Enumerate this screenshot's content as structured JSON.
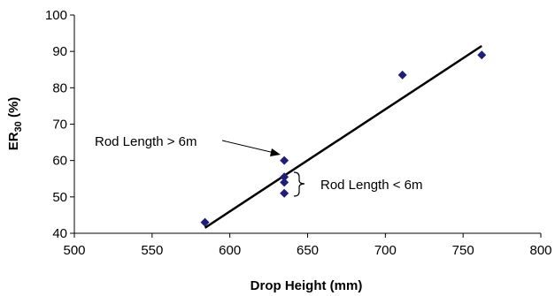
{
  "chart_data": {
    "type": "scatter",
    "xlabel": "Drop Height (mm)",
    "ylabel": {
      "main": "ER",
      "subscript": "30",
      "unit": " (%)"
    },
    "xlim": [
      500,
      800
    ],
    "ylim": [
      40,
      100
    ],
    "x_ticks": [
      "500",
      "550",
      "600",
      "650",
      "700",
      "750",
      "800"
    ],
    "y_ticks": [
      "40",
      "50",
      "60",
      "70",
      "80",
      "90",
      "100"
    ],
    "grid": false,
    "legend": "none",
    "colors": {
      "marker": "#1f1f7a",
      "trendline": "#000000",
      "axis": "#000000"
    },
    "series": [
      {
        "marker": "diamond",
        "points": [
          {
            "x": 584,
            "y": 43
          },
          {
            "x": 635,
            "y": 60
          },
          {
            "x": 635,
            "y": 55.5
          },
          {
            "x": 635,
            "y": 54
          },
          {
            "x": 635,
            "y": 51
          },
          {
            "x": 711,
            "y": 83.5
          },
          {
            "x": 762,
            "y": 89
          }
        ]
      }
    ],
    "trendline": {
      "x": [
        584,
        762
      ],
      "y": [
        41.5,
        91.5
      ]
    },
    "annotations": [
      {
        "text": "Rod Length > 6m",
        "style": "arrow",
        "target": {
          "x": 635,
          "y": 60
        }
      },
      {
        "text": "Rod Length < 6m",
        "style": "brace",
        "span": [
          51,
          57
        ]
      }
    ]
  }
}
